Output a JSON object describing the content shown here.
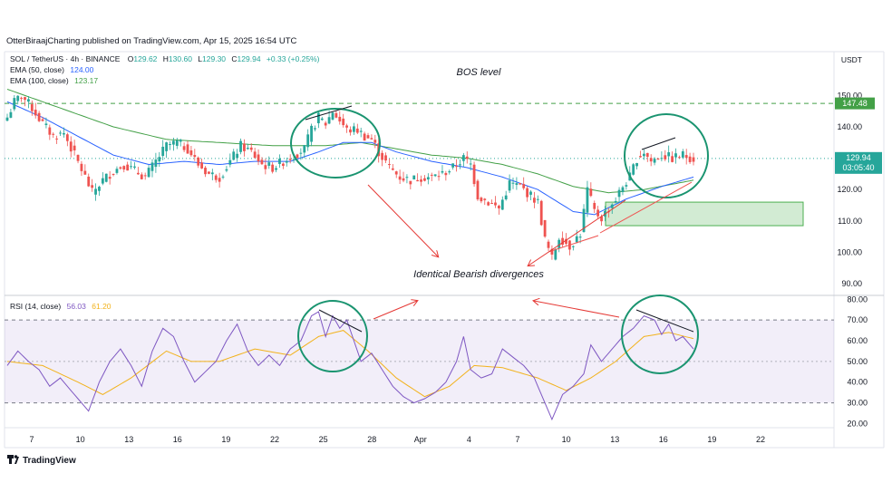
{
  "header": {
    "publisher": "OtterBiraajCharting published on TradingView.com, Apr 15, 2025 16:54 UTC"
  },
  "legend": {
    "symbol": "SOL / TetherUS · 4h · BINANCE",
    "ohlc": {
      "o_label": "O",
      "o": "129.62",
      "h_label": "H",
      "h": "130.60",
      "l_label": "L",
      "l": "129.30",
      "c_label": "C",
      "c": "129.94",
      "change": "+0.33 (+0.25%)"
    },
    "ema50": {
      "label": "EMA (50, close)",
      "value": "124.00"
    },
    "ema100": {
      "label": "EMA (100, close)",
      "value": "123.17"
    }
  },
  "rsi_legend": {
    "label": "RSI (14, close)",
    "rsi": "56.03",
    "ma": "61.20"
  },
  "currency": "USDT",
  "annotations": {
    "bos": "BOS level",
    "divergence": "Identical Bearish divergences"
  },
  "price_tags": {
    "bos_value": "147.48",
    "last_value": "129.94",
    "countdown": "03:05:40"
  },
  "footer": {
    "brand": "TradingView"
  },
  "colors": {
    "up": "#26a69a",
    "down": "#ef5350",
    "ema50": "#2962ff",
    "ema100": "#43a047",
    "rsi": "#7e57c2",
    "rsi_ma": "#f2b21b",
    "annot": "#e53935",
    "circle": "#1a9470",
    "zone": "#4caf50"
  },
  "chart_data": [
    {
      "type": "candlestick",
      "title": "",
      "x_ticks": [
        "7",
        "10",
        "13",
        "16",
        "19",
        "22",
        "25",
        "28",
        "Apr",
        "4",
        "7",
        "10",
        "13",
        "16",
        "19",
        "22"
      ],
      "y_ticks": [
        90,
        100,
        110,
        120,
        130,
        140,
        150
      ],
      "ylim": [
        88,
        153
      ],
      "bos_level": 147.48,
      "last_price": 129.94,
      "support_zone": [
        108.5,
        116
      ],
      "close_waypoints": [
        {
          "x": 0,
          "y": 143
        },
        {
          "x": 2,
          "y": 148
        },
        {
          "x": 4,
          "y": 150
        },
        {
          "x": 7,
          "y": 146
        },
        {
          "x": 10,
          "y": 141
        },
        {
          "x": 13,
          "y": 137
        },
        {
          "x": 16,
          "y": 138
        },
        {
          "x": 19,
          "y": 131
        },
        {
          "x": 22,
          "y": 124
        },
        {
          "x": 24,
          "y": 119
        },
        {
          "x": 27,
          "y": 123
        },
        {
          "x": 30,
          "y": 126
        },
        {
          "x": 33,
          "y": 128
        },
        {
          "x": 36,
          "y": 126
        },
        {
          "x": 39,
          "y": 124
        },
        {
          "x": 42,
          "y": 129
        },
        {
          "x": 45,
          "y": 134
        },
        {
          "x": 48,
          "y": 135
        },
        {
          "x": 51,
          "y": 133
        },
        {
          "x": 54,
          "y": 128
        },
        {
          "x": 57,
          "y": 125
        },
        {
          "x": 60,
          "y": 124
        },
        {
          "x": 63,
          "y": 129
        },
        {
          "x": 66,
          "y": 134
        },
        {
          "x": 69,
          "y": 132
        },
        {
          "x": 72,
          "y": 128
        },
        {
          "x": 75,
          "y": 127
        },
        {
          "x": 78,
          "y": 129
        },
        {
          "x": 81,
          "y": 131
        },
        {
          "x": 84,
          "y": 133
        },
        {
          "x": 86,
          "y": 139
        },
        {
          "x": 88,
          "y": 143
        },
        {
          "x": 90,
          "y": 141
        },
        {
          "x": 92,
          "y": 145
        },
        {
          "x": 94,
          "y": 142
        },
        {
          "x": 96,
          "y": 139
        },
        {
          "x": 99,
          "y": 139
        },
        {
          "x": 101,
          "y": 137
        },
        {
          "x": 103,
          "y": 136
        },
        {
          "x": 105,
          "y": 132
        },
        {
          "x": 108,
          "y": 127
        },
        {
          "x": 111,
          "y": 124
        },
        {
          "x": 114,
          "y": 123
        },
        {
          "x": 117,
          "y": 124
        },
        {
          "x": 120,
          "y": 124
        },
        {
          "x": 123,
          "y": 125
        },
        {
          "x": 126,
          "y": 127
        },
        {
          "x": 129,
          "y": 130
        },
        {
          "x": 131,
          "y": 128
        },
        {
          "x": 133,
          "y": 118
        },
        {
          "x": 136,
          "y": 116
        },
        {
          "x": 139,
          "y": 114
        },
        {
          "x": 142,
          "y": 122
        },
        {
          "x": 145,
          "y": 121
        },
        {
          "x": 148,
          "y": 118
        },
        {
          "x": 150,
          "y": 116
        },
        {
          "x": 152,
          "y": 104
        },
        {
          "x": 154,
          "y": 98
        },
        {
          "x": 156,
          "y": 105
        },
        {
          "x": 159,
          "y": 102
        },
        {
          "x": 162,
          "y": 106
        },
        {
          "x": 164,
          "y": 120
        },
        {
          "x": 166,
          "y": 113
        },
        {
          "x": 168,
          "y": 111
        },
        {
          "x": 170,
          "y": 114
        },
        {
          "x": 172,
          "y": 117
        },
        {
          "x": 174,
          "y": 121
        },
        {
          "x": 176,
          "y": 124
        },
        {
          "x": 178,
          "y": 130
        },
        {
          "x": 180,
          "y": 132
        },
        {
          "x": 182,
          "y": 129
        },
        {
          "x": 185,
          "y": 131
        },
        {
          "x": 188,
          "y": 130
        },
        {
          "x": 191,
          "y": 131
        },
        {
          "x": 194,
          "y": 130
        }
      ],
      "ema50_waypoints": [
        {
          "x": 0,
          "y": 148
        },
        {
          "x": 10,
          "y": 143
        },
        {
          "x": 20,
          "y": 137
        },
        {
          "x": 30,
          "y": 131
        },
        {
          "x": 40,
          "y": 128
        },
        {
          "x": 50,
          "y": 129
        },
        {
          "x": 60,
          "y": 128
        },
        {
          "x": 70,
          "y": 129
        },
        {
          "x": 80,
          "y": 129
        },
        {
          "x": 88,
          "y": 132
        },
        {
          "x": 95,
          "y": 135
        },
        {
          "x": 103,
          "y": 135
        },
        {
          "x": 110,
          "y": 132
        },
        {
          "x": 120,
          "y": 129
        },
        {
          "x": 130,
          "y": 127
        },
        {
          "x": 140,
          "y": 124
        },
        {
          "x": 150,
          "y": 120
        },
        {
          "x": 160,
          "y": 113
        },
        {
          "x": 166,
          "y": 112
        },
        {
          "x": 175,
          "y": 117
        },
        {
          "x": 185,
          "y": 121
        },
        {
          "x": 194,
          "y": 124
        }
      ],
      "ema100_waypoints": [
        {
          "x": 0,
          "y": 152
        },
        {
          "x": 15,
          "y": 146
        },
        {
          "x": 30,
          "y": 140
        },
        {
          "x": 45,
          "y": 136
        },
        {
          "x": 60,
          "y": 135
        },
        {
          "x": 75,
          "y": 134
        },
        {
          "x": 90,
          "y": 134
        },
        {
          "x": 100,
          "y": 135
        },
        {
          "x": 110,
          "y": 133
        },
        {
          "x": 120,
          "y": 131
        },
        {
          "x": 130,
          "y": 130
        },
        {
          "x": 140,
          "y": 128
        },
        {
          "x": 150,
          "y": 125
        },
        {
          "x": 160,
          "y": 121
        },
        {
          "x": 170,
          "y": 119
        },
        {
          "x": 180,
          "y": 120
        },
        {
          "x": 194,
          "y": 123
        }
      ]
    },
    {
      "type": "line",
      "title": "",
      "y_ticks": [
        20,
        30,
        40,
        50,
        60,
        70,
        80
      ],
      "ylim": [
        18,
        81
      ],
      "overbought": 70,
      "middle": 50,
      "oversold": 30,
      "rsi_waypoints": [
        {
          "x": 0,
          "y": 48
        },
        {
          "x": 3,
          "y": 55
        },
        {
          "x": 6,
          "y": 50
        },
        {
          "x": 9,
          "y": 46
        },
        {
          "x": 12,
          "y": 38
        },
        {
          "x": 15,
          "y": 42
        },
        {
          "x": 18,
          "y": 36
        },
        {
          "x": 21,
          "y": 30
        },
        {
          "x": 23,
          "y": 26
        },
        {
          "x": 26,
          "y": 40
        },
        {
          "x": 29,
          "y": 50
        },
        {
          "x": 32,
          "y": 56
        },
        {
          "x": 35,
          "y": 48
        },
        {
          "x": 38,
          "y": 38
        },
        {
          "x": 41,
          "y": 55
        },
        {
          "x": 44,
          "y": 66
        },
        {
          "x": 47,
          "y": 62
        },
        {
          "x": 50,
          "y": 50
        },
        {
          "x": 53,
          "y": 40
        },
        {
          "x": 56,
          "y": 45
        },
        {
          "x": 59,
          "y": 50
        },
        {
          "x": 62,
          "y": 60
        },
        {
          "x": 65,
          "y": 68
        },
        {
          "x": 68,
          "y": 55
        },
        {
          "x": 71,
          "y": 48
        },
        {
          "x": 74,
          "y": 53
        },
        {
          "x": 77,
          "y": 48
        },
        {
          "x": 80,
          "y": 56
        },
        {
          "x": 83,
          "y": 60
        },
        {
          "x": 86,
          "y": 72
        },
        {
          "x": 88,
          "y": 74
        },
        {
          "x": 90,
          "y": 62
        },
        {
          "x": 92,
          "y": 72
        },
        {
          "x": 94,
          "y": 66
        },
        {
          "x": 96,
          "y": 70
        },
        {
          "x": 98,
          "y": 60
        },
        {
          "x": 100,
          "y": 50
        },
        {
          "x": 103,
          "y": 54
        },
        {
          "x": 106,
          "y": 46
        },
        {
          "x": 109,
          "y": 38
        },
        {
          "x": 112,
          "y": 33
        },
        {
          "x": 115,
          "y": 30
        },
        {
          "x": 118,
          "y": 32
        },
        {
          "x": 121,
          "y": 35
        },
        {
          "x": 124,
          "y": 40
        },
        {
          "x": 127,
          "y": 50
        },
        {
          "x": 129,
          "y": 62
        },
        {
          "x": 131,
          "y": 46
        },
        {
          "x": 134,
          "y": 42
        },
        {
          "x": 137,
          "y": 44
        },
        {
          "x": 140,
          "y": 56
        },
        {
          "x": 143,
          "y": 52
        },
        {
          "x": 146,
          "y": 48
        },
        {
          "x": 149,
          "y": 42
        },
        {
          "x": 152,
          "y": 30
        },
        {
          "x": 154,
          "y": 22
        },
        {
          "x": 157,
          "y": 34
        },
        {
          "x": 160,
          "y": 38
        },
        {
          "x": 163,
          "y": 44
        },
        {
          "x": 165,
          "y": 58
        },
        {
          "x": 168,
          "y": 50
        },
        {
          "x": 171,
          "y": 56
        },
        {
          "x": 174,
          "y": 62
        },
        {
          "x": 177,
          "y": 66
        },
        {
          "x": 180,
          "y": 72
        },
        {
          "x": 183,
          "y": 70
        },
        {
          "x": 185,
          "y": 63
        },
        {
          "x": 187,
          "y": 68
        },
        {
          "x": 189,
          "y": 60
        },
        {
          "x": 191,
          "y": 62
        },
        {
          "x": 194,
          "y": 56
        }
      ],
      "rsi_ma_waypoints": [
        {
          "x": 0,
          "y": 50
        },
        {
          "x": 10,
          "y": 48
        },
        {
          "x": 20,
          "y": 40
        },
        {
          "x": 27,
          "y": 34
        },
        {
          "x": 35,
          "y": 42
        },
        {
          "x": 45,
          "y": 55
        },
        {
          "x": 52,
          "y": 50
        },
        {
          "x": 60,
          "y": 50
        },
        {
          "x": 70,
          "y": 56
        },
        {
          "x": 80,
          "y": 53
        },
        {
          "x": 88,
          "y": 62
        },
        {
          "x": 95,
          "y": 65
        },
        {
          "x": 102,
          "y": 55
        },
        {
          "x": 110,
          "y": 42
        },
        {
          "x": 118,
          "y": 33
        },
        {
          "x": 125,
          "y": 38
        },
        {
          "x": 132,
          "y": 48
        },
        {
          "x": 140,
          "y": 47
        },
        {
          "x": 150,
          "y": 42
        },
        {
          "x": 158,
          "y": 36
        },
        {
          "x": 165,
          "y": 42
        },
        {
          "x": 172,
          "y": 50
        },
        {
          "x": 180,
          "y": 62
        },
        {
          "x": 187,
          "y": 64
        },
        {
          "x": 194,
          "y": 61
        }
      ]
    }
  ]
}
